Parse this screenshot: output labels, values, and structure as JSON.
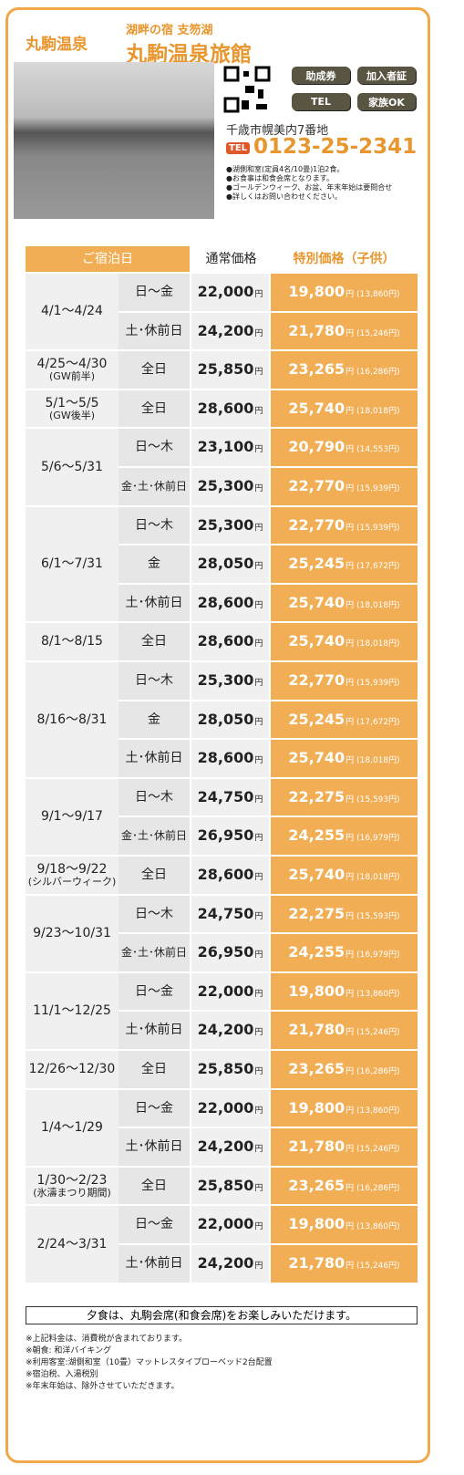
{
  "header": {
    "area": "丸駒温泉",
    "subtitle": "湖畔の宿 支笏湖",
    "name": "丸駒温泉旅館",
    "badges": [
      "助成券",
      "加入者証",
      "TEL",
      "家族OK"
    ],
    "address": "千歳市幌美内7番地",
    "tel_label": "TEL",
    "tel": "0123-25-2341",
    "notes": [
      "●湖側和室(定員4名/10畳)1泊2食。",
      "●お食事は和食会席となります。",
      "●ゴールデンウィーク、お盆、年末年始は要問合せ",
      "●詳しくはお問い合わせください。"
    ]
  },
  "table": {
    "headers": [
      "ご宿泊日",
      "通常価格",
      "特別価格（子供）"
    ],
    "unit": "円",
    "groups": [
      {
        "period": [
          "4/1～4/24"
        ],
        "rows": [
          [
            "日～金",
            "22,000",
            "19,800",
            "(13,860円)"
          ],
          [
            "土･休前日",
            "24,200",
            "21,780",
            "(15,246円)"
          ]
        ]
      },
      {
        "period": [
          "4/25～4/30",
          "(GW前半)"
        ],
        "rows": [
          [
            "全日",
            "25,850",
            "23,265",
            "(16,286円)"
          ]
        ]
      },
      {
        "period": [
          "5/1～5/5",
          "(GW後半)"
        ],
        "rows": [
          [
            "全日",
            "28,600",
            "25,740",
            "(18,018円)"
          ]
        ]
      },
      {
        "period": [
          "5/6～5/31"
        ],
        "rows": [
          [
            "日～木",
            "23,100",
            "20,790",
            "(14,553円)"
          ],
          [
            "金･土･休前日",
            "25,300",
            "22,770",
            "(15,939円)"
          ]
        ]
      },
      {
        "period": [
          "6/1～7/31"
        ],
        "rows": [
          [
            "日～木",
            "25,300",
            "22,770",
            "(15,939円)"
          ],
          [
            "金",
            "28,050",
            "25,245",
            "(17,672円)"
          ],
          [
            "土･休前日",
            "28,600",
            "25,740",
            "(18,018円)"
          ]
        ]
      },
      {
        "period": [
          "8/1～8/15"
        ],
        "rows": [
          [
            "全日",
            "28,600",
            "25,740",
            "(18,018円)"
          ]
        ]
      },
      {
        "period": [
          "8/16～8/31"
        ],
        "rows": [
          [
            "日～木",
            "25,300",
            "22,770",
            "(15,939円)"
          ],
          [
            "金",
            "28,050",
            "25,245",
            "(17,672円)"
          ],
          [
            "土･休前日",
            "28,600",
            "25,740",
            "(18,018円)"
          ]
        ]
      },
      {
        "period": [
          "9/1～9/17"
        ],
        "rows": [
          [
            "日～木",
            "24,750",
            "22,275",
            "(15,593円)"
          ],
          [
            "金･土･休前日",
            "26,950",
            "24,255",
            "(16,979円)"
          ]
        ]
      },
      {
        "period": [
          "9/18～9/22",
          "(シルバーウィーク)"
        ],
        "rows": [
          [
            "全日",
            "28,600",
            "25,740",
            "(18,018円)"
          ]
        ]
      },
      {
        "period": [
          "9/23～10/31"
        ],
        "rows": [
          [
            "日～木",
            "24,750",
            "22,275",
            "(15,593円)"
          ],
          [
            "金･土･休前日",
            "26,950",
            "24,255",
            "(16,979円)"
          ]
        ]
      },
      {
        "period": [
          "11/1～12/25"
        ],
        "rows": [
          [
            "日～金",
            "22,000",
            "19,800",
            "(13,860円)"
          ],
          [
            "土･休前日",
            "24,200",
            "21,780",
            "(15,246円)"
          ]
        ]
      },
      {
        "period": [
          "12/26～12/30"
        ],
        "rows": [
          [
            "全日",
            "25,850",
            "23,265",
            "(16,286円)"
          ]
        ]
      },
      {
        "period": [
          "1/4～1/29"
        ],
        "rows": [
          [
            "日～金",
            "22,000",
            "19,800",
            "(13,860円)"
          ],
          [
            "土･休前日",
            "24,200",
            "21,780",
            "(15,246円)"
          ]
        ]
      },
      {
        "period": [
          "1/30～2/23",
          "(氷濤まつり期間)"
        ],
        "rows": [
          [
            "全日",
            "25,850",
            "23,265",
            "(16,286円)"
          ]
        ]
      },
      {
        "period": [
          "2/24～3/31"
        ],
        "rows": [
          [
            "日～金",
            "22,000",
            "19,800",
            "(13,860円)"
          ],
          [
            "土･休前日",
            "24,200",
            "21,780",
            "(15,246円)"
          ]
        ]
      }
    ]
  },
  "footer": {
    "dinner": "夕食は、丸駒会席(和食会席)をお楽しみいただけます。",
    "notes": [
      "※上記料金は、消費税が含まれております。",
      "※朝食: 和洋バイキング",
      "※利用客室:湖側和室（10畳）マットレスタイプローベッド2台配置",
      "※宿泊税、入湯税別",
      "※年末年始は、除外させていただきます。"
    ]
  }
}
